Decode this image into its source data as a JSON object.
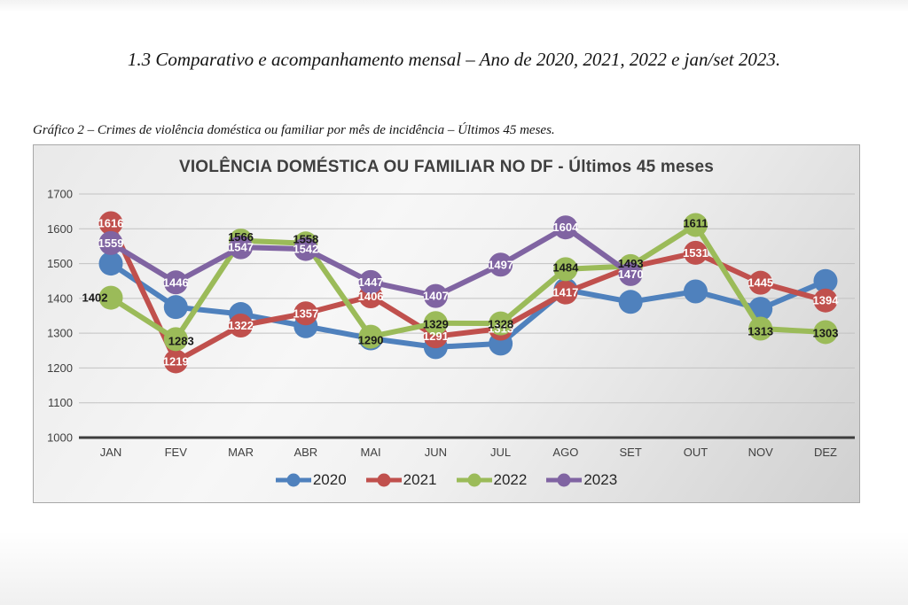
{
  "page": {
    "heading": "1.3 Comparativo e acompanhamento mensal – Ano de 2020, 2021, 2022 e jan/set 2023.",
    "figure_caption": "Gráfico 2 – Crimes de violência doméstica ou familiar por mês de incidência – Últimos 45 meses."
  },
  "chart_data": {
    "type": "line",
    "title": "VIOLÊNCIA DOMÉSTICA OU FAMILIAR NO DF - Últimos 45 meses",
    "categories": [
      "JAN",
      "FEV",
      "MAR",
      "ABR",
      "MAI",
      "JUN",
      "JUL",
      "AGO",
      "SET",
      "OUT",
      "NOV",
      "DEZ"
    ],
    "ylim": [
      1000,
      1700
    ],
    "ytick_step": 100,
    "yticks": [
      "1700",
      "1600",
      "1500",
      "1400",
      "1300",
      "1200",
      "1100",
      "1000"
    ],
    "grid": true,
    "legend_position": "bottom",
    "colors": {
      "axis": "#3d3d3d",
      "gridline": "#c2c2c2",
      "tick_text": "#3f3f3f"
    },
    "series": [
      {
        "name": "2020",
        "color": "#4F81BD",
        "data_labels_visible": false,
        "values": [
          1500,
          1375,
          1355,
          1320,
          1285,
          1260,
          1270,
          1425,
          1390,
          1420,
          1370,
          1450
        ],
        "labels": [
          null,
          null,
          null,
          null,
          null,
          null,
          null,
          null,
          null,
          null,
          null,
          null
        ]
      },
      {
        "name": "2021",
        "color": "#C0504D",
        "label_color": "#ffffff",
        "data_labels_visible": true,
        "values": [
          1616,
          1219,
          1322,
          1357,
          1406,
          1291,
          1313,
          1417,
          1490,
          1531,
          1445,
          1394
        ],
        "labels": [
          "1616",
          "1219",
          "1322",
          "1357",
          "1406",
          "1291",
          "1313",
          "1417",
          null,
          "1531",
          "1445",
          "1394"
        ]
      },
      {
        "name": "2022",
        "color": "#9BBB59",
        "label_color": "#1a1a1a",
        "data_labels_visible": true,
        "values": [
          1402,
          1283,
          1566,
          1558,
          1290,
          1329,
          1328,
          1484,
          1493,
          1611,
          1313,
          1303
        ],
        "labels": [
          "1402",
          "1283",
          "1566",
          "1558",
          "1290",
          "1329",
          "1328",
          "1484",
          "1493",
          "1611",
          "1313",
          "1303"
        ],
        "label_offsets": {
          "0": [
            -18,
            0
          ],
          "1": [
            6,
            2
          ],
          "2": [
            0,
            -4
          ],
          "3": [
            0,
            -5
          ],
          "4": [
            0,
            4
          ],
          "5": [
            0,
            1
          ],
          "6": [
            0,
            1
          ],
          "7": [
            0,
            -2
          ],
          "8": [
            0,
            -3
          ],
          "9": [
            0,
            -2
          ],
          "10": [
            0,
            3
          ],
          "11": [
            0,
            1
          ]
        }
      },
      {
        "name": "2023",
        "color": "#8064A2",
        "label_color": "#ffffff",
        "data_labels_visible": true,
        "values": [
          1559,
          1446,
          1547,
          1542,
          1447,
          1407,
          1497,
          1604,
          1470,
          null,
          null,
          null
        ],
        "labels": [
          "1559",
          "1446",
          "1547",
          "1542",
          "1447",
          "1407",
          "1497",
          "1604",
          "1470",
          null,
          null,
          null
        ]
      }
    ]
  }
}
